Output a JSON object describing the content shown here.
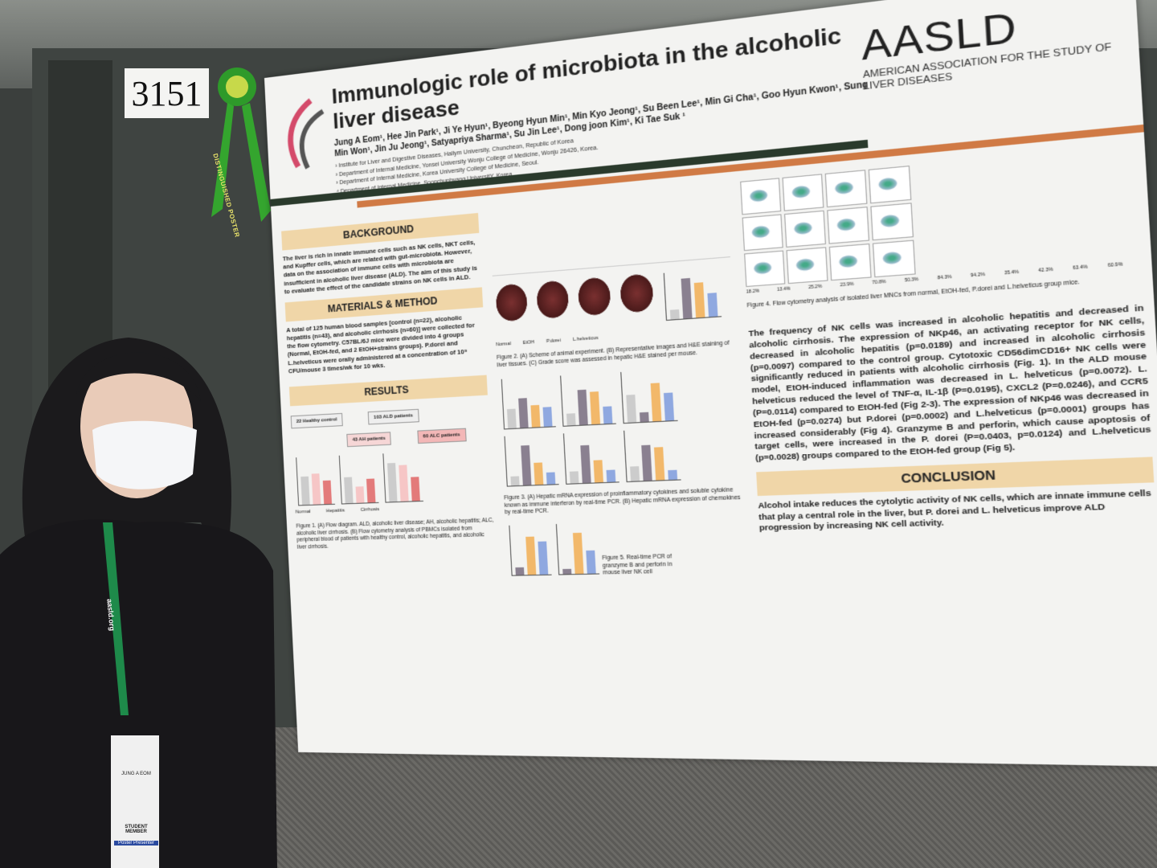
{
  "booth_number": "3151",
  "ribbon": {
    "logo_text": "AASLD",
    "text": "DISTINGUISHED POSTER"
  },
  "poster": {
    "title": "Immunologic role of microbiota in the alcoholic liver disease",
    "authors": "Jung A Eom¹, Hee Jin Park¹, Ji Ye Hyun¹, Byeong Hyun Min¹, Min Kyo Jeong¹, Su Been Lee¹, Min Gi Cha¹, Goo Hyun Kwon¹, Sung Min Won¹, Jin Ju Jeong¹, Satyapriya Sharma¹, Su Jin Lee¹, Dong joon Kim¹, Ki Tae Suk ¹",
    "affiliations": [
      "¹ Institute for Liver and Digestive Diseases, Hallym University, Chuncheon, Republic of Korea",
      "² Department of Internal Medicine, Yonsei University Wonju College of Medicine, Wonju 26426, Korea.",
      "³ Department of Internal Medicine, Korea University College of Medicine, Seoul.",
      "⁴ Department of Internal Medicine, Soonchunhyang UniversitY, Korea."
    ],
    "org_logo": {
      "name": "AASLD",
      "subtitle": "AMERICAN ASSOCIATION FOR THE STUDY OF LIVER DISEASES"
    },
    "colors": {
      "orange": "#d07a45",
      "dark_green": "#2a3a2c",
      "section_header": "#f0d6a8"
    },
    "background": {
      "heading": "BACKGROUND",
      "text": "The liver is rich in innate immune cells such as NK cells, NKT cells, and Kupffer cells, which are related with gut-microbiota. However, data on the association of immune cells with microbiota are insufficient in alcoholic liver disease (ALD). The aim of this study is to evaluate the effect of the candidate strains on NK cells in ALD."
    },
    "methods": {
      "heading": "MATERIALS & METHOD",
      "text": "A total of 125 human blood samples [control (n=22), alcoholic hepatitis (n=43), and alcoholic cirrhosis (n=60)] were collected for the flow cytometry. C57BL/6J mice were divided into 4 groups (Normal, EtOH-fed, and 2 EtOH+strains groups). P.dorei and L.helveticus were orally administered at a concentration of 10⁹ CFU/mouse 3 times/wk for 10 wks."
    },
    "results": {
      "heading": "RESULTS",
      "flow_boxes": [
        "22 Healthy control",
        "103 ALD patients",
        "43 AH patients",
        "60 ALC patients"
      ],
      "groups_human": [
        "Normal",
        "Hepatitis",
        "Cirrhosis"
      ],
      "groups_mouse": [
        "Normal",
        "EtOH",
        "P.dorei",
        "L.helveticus"
      ],
      "fig1_caption": "Figure 1. (A) Flow diagram. ALD, alcoholic liver disease; AH, alcoholic hepatitis; ALC, alcoholic liver cirrhosis. (B) Flow cytometry analysis of PBMCs isolated from peripheral blood of patients with healthy control, alcoholic hepatitis, and alcoholic liver cirrhosis.",
      "fig2_caption": "Figure 2. (A) Scheme of animal experiment. (B) Representative images and H&E staining of liver tissues. (C) Grade score was assessed in hepatic H&E stained per mouse.",
      "fig3_caption": "Figure 3. (A) Hepatic mRNA expression of proinflammatory cytokines and soluble cytokine known as immune interferon by real-time PCR. (B) Hepatic mRNA expression of chemokines by real-time PCR.",
      "fig4_caption": "Figure 4. Flow cytometry analysis of isolated liver MNCs from normal, EtOH-fed, P.dorei and L.helveticus group mice.",
      "fig5_caption": "Figure 5. Real-time PCR of granzyme B and perforin in mouse liver NK cell",
      "fig4_percent": [
        "18.2%",
        "13.4%",
        "25.2%",
        "23.9%",
        "70.8%",
        "50.3%",
        "84.3%",
        "94.2%",
        "35.4%",
        "42.3%",
        "63.4%",
        "60.9%"
      ],
      "summary": "The frequency of NK cells was increased in alcoholic hepatitis and decreased in alcoholic cirrhosis. The expression of NKp46, an activating receptor for NK cells, decreased in alcoholic hepatitis (p=0.0189) and increased in alcoholic cirrhosis (p=0.0097) compared to the control group. Cytotoxic CD56dimCD16+ NK cells were significantly reduced in patients with alcoholic cirrhosis (Fig. 1). In the ALD mouse model, EtOH-induced inflammation was decreased in L. helveticus (p=0.0072). L. helveticus reduced the level of TNF-α, IL-1β (P=0.0195), CXCL2 (P=0.0246), and CCR5 (P=0.0114) compared to EtOH-fed (Fig 2-3). The expression of NKp46 was decreased in EtOH-fed (p=0.0274) but P.dorei (p=0.0002) and L.helveticus (p=0.0001) groups has increased considerably (Fig 4). Granzyme B and perforin, which cause apoptosis of target cells, were increased in the P. dorei (P=0.0403, p=0.0124) and L.helveticus (p=0.0028) groups compared to the EtOH-fed group (Fig 5)."
    },
    "conclusion": {
      "heading": "CONCLUSION",
      "text": "Alcohol intake reduces the cytolytic activity of NK cells, which are innate immune cells that play a central role in the liver, but P. dorei and L. helveticus improve ALD progression by increasing NK cell activity."
    }
  },
  "lanyard": {
    "text": "aasld.org",
    "badge_name": "JUNG A EOM",
    "badge_type": "STUDENT MEMBER",
    "badge_footer": "Poster Presenter"
  }
}
